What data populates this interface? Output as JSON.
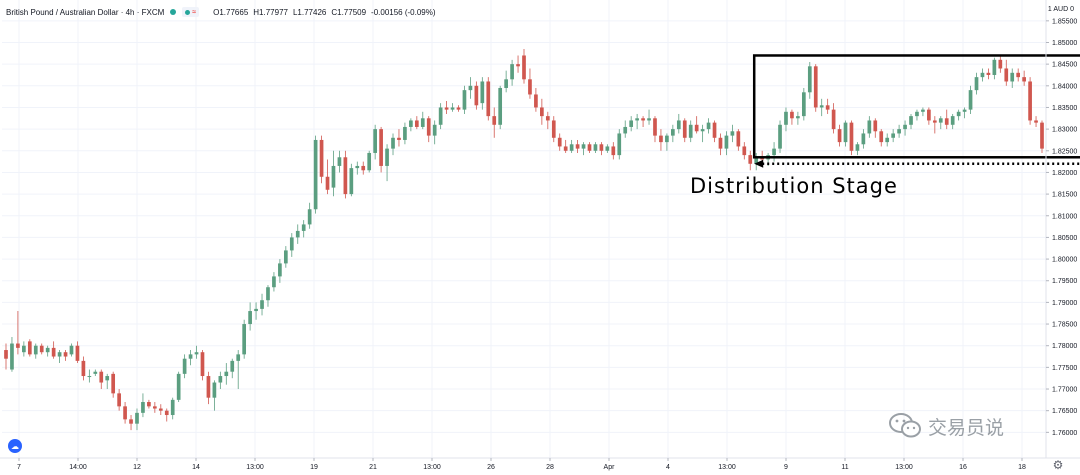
{
  "header": {
    "title": "British Pound / Australian Dollar · 4h · FXCM",
    "open": "O1.77665",
    "high": "H1.77977",
    "low": "L1.77426",
    "close": "C1.77509",
    "change": "-0.00156 (-0.09%)"
  },
  "currency_label": "1 AUD 0",
  "annotation": "Distribution Stage",
  "watermark": "交易员说",
  "icons": {
    "logo": "tradingview-cloud-icon",
    "settings": "gear-icon",
    "watermark": "wechat-icon"
  },
  "colors": {
    "up": "#5b9e80",
    "down": "#d0574f",
    "box": "#000000",
    "grid": "#f0f3fa"
  },
  "chart_data": {
    "type": "candlestick",
    "title": "British Pound / Australian Dollar · 4h · FXCM",
    "ylim": [
      1.755,
      1.8575
    ],
    "y_ticks": [
      "1.85500",
      "1.85000",
      "1.84500",
      "1.84000",
      "1.83500",
      "1.83000",
      "1.82500",
      "1.82000",
      "1.81500",
      "1.81000",
      "1.80500",
      "1.80000",
      "1.79500",
      "1.79000",
      "1.78500",
      "1.78000",
      "1.77500",
      "1.77000",
      "1.76500",
      "1.76000"
    ],
    "x_ticks": [
      "7",
      "14:00",
      "12",
      "14",
      "13:00",
      "19",
      "21",
      "13:00",
      "26",
      "28",
      "Apr",
      "4",
      "13:00",
      "9",
      "11",
      "13:00",
      "16",
      "18"
    ],
    "grid": true,
    "candles": [
      {
        "o": 1.779,
        "h": 1.7805,
        "l": 1.7745,
        "c": 1.777
      },
      {
        "o": 1.7745,
        "h": 1.782,
        "l": 1.774,
        "c": 1.7805
      },
      {
        "o": 1.7805,
        "h": 1.788,
        "l": 1.778,
        "c": 1.7795
      },
      {
        "o": 1.7785,
        "h": 1.781,
        "l": 1.7775,
        "c": 1.78
      },
      {
        "o": 1.781,
        "h": 1.7815,
        "l": 1.7775,
        "c": 1.778
      },
      {
        "o": 1.778,
        "h": 1.7805,
        "l": 1.777,
        "c": 1.78
      },
      {
        "o": 1.78,
        "h": 1.7805,
        "l": 1.778,
        "c": 1.7785
      },
      {
        "o": 1.7785,
        "h": 1.78,
        "l": 1.7775,
        "c": 1.7795
      },
      {
        "o": 1.7795,
        "h": 1.781,
        "l": 1.777,
        "c": 1.7775
      },
      {
        "o": 1.7775,
        "h": 1.779,
        "l": 1.776,
        "c": 1.7785
      },
      {
        "o": 1.7785,
        "h": 1.779,
        "l": 1.7765,
        "c": 1.7775
      },
      {
        "o": 1.778,
        "h": 1.7805,
        "l": 1.7775,
        "c": 1.78
      },
      {
        "o": 1.78,
        "h": 1.781,
        "l": 1.776,
        "c": 1.7765
      },
      {
        "o": 1.7765,
        "h": 1.7775,
        "l": 1.772,
        "c": 1.773
      },
      {
        "o": 1.773,
        "h": 1.7745,
        "l": 1.7715,
        "c": 1.773
      },
      {
        "o": 1.7735,
        "h": 1.7745,
        "l": 1.773,
        "c": 1.774
      },
      {
        "o": 1.774,
        "h": 1.7745,
        "l": 1.77,
        "c": 1.7715
      },
      {
        "o": 1.772,
        "h": 1.7735,
        "l": 1.77,
        "c": 1.773
      },
      {
        "o": 1.7735,
        "h": 1.774,
        "l": 1.768,
        "c": 1.769
      },
      {
        "o": 1.769,
        "h": 1.77,
        "l": 1.765,
        "c": 1.766
      },
      {
        "o": 1.766,
        "h": 1.767,
        "l": 1.762,
        "c": 1.763
      },
      {
        "o": 1.763,
        "h": 1.764,
        "l": 1.7605,
        "c": 1.762
      },
      {
        "o": 1.762,
        "h": 1.7655,
        "l": 1.7605,
        "c": 1.7645
      },
      {
        "o": 1.7645,
        "h": 1.769,
        "l": 1.7635,
        "c": 1.767
      },
      {
        "o": 1.767,
        "h": 1.7675,
        "l": 1.7655,
        "c": 1.766
      },
      {
        "o": 1.766,
        "h": 1.767,
        "l": 1.7645,
        "c": 1.7655
      },
      {
        "o": 1.7655,
        "h": 1.7665,
        "l": 1.764,
        "c": 1.765
      },
      {
        "o": 1.765,
        "h": 1.7655,
        "l": 1.7625,
        "c": 1.764
      },
      {
        "o": 1.764,
        "h": 1.768,
        "l": 1.763,
        "c": 1.7675
      },
      {
        "o": 1.7675,
        "h": 1.774,
        "l": 1.767,
        "c": 1.7735
      },
      {
        "o": 1.7735,
        "h": 1.778,
        "l": 1.7725,
        "c": 1.777
      },
      {
        "o": 1.777,
        "h": 1.779,
        "l": 1.7755,
        "c": 1.778
      },
      {
        "o": 1.778,
        "h": 1.78,
        "l": 1.777,
        "c": 1.7785
      },
      {
        "o": 1.7785,
        "h": 1.779,
        "l": 1.772,
        "c": 1.773
      },
      {
        "o": 1.773,
        "h": 1.774,
        "l": 1.7665,
        "c": 1.768
      },
      {
        "o": 1.768,
        "h": 1.772,
        "l": 1.765,
        "c": 1.7715
      },
      {
        "o": 1.7715,
        "h": 1.774,
        "l": 1.77,
        "c": 1.773
      },
      {
        "o": 1.773,
        "h": 1.776,
        "l": 1.771,
        "c": 1.774
      },
      {
        "o": 1.774,
        "h": 1.777,
        "l": 1.7725,
        "c": 1.7765
      },
      {
        "o": 1.7765,
        "h": 1.779,
        "l": 1.77,
        "c": 1.778
      },
      {
        "o": 1.778,
        "h": 1.786,
        "l": 1.777,
        "c": 1.785
      },
      {
        "o": 1.785,
        "h": 1.79,
        "l": 1.7835,
        "c": 1.788
      },
      {
        "o": 1.788,
        "h": 1.79,
        "l": 1.786,
        "c": 1.7885
      },
      {
        "o": 1.7885,
        "h": 1.792,
        "l": 1.787,
        "c": 1.7905
      },
      {
        "o": 1.7905,
        "h": 1.794,
        "l": 1.789,
        "c": 1.7935
      },
      {
        "o": 1.7935,
        "h": 1.797,
        "l": 1.7925,
        "c": 1.796
      },
      {
        "o": 1.796,
        "h": 1.8,
        "l": 1.7945,
        "c": 1.799
      },
      {
        "o": 1.799,
        "h": 1.803,
        "l": 1.798,
        "c": 1.802
      },
      {
        "o": 1.802,
        "h": 1.806,
        "l": 1.8005,
        "c": 1.805
      },
      {
        "o": 1.805,
        "h": 1.808,
        "l": 1.8035,
        "c": 1.8065
      },
      {
        "o": 1.8065,
        "h": 1.809,
        "l": 1.805,
        "c": 1.808
      },
      {
        "o": 1.808,
        "h": 1.813,
        "l": 1.807,
        "c": 1.8115
      },
      {
        "o": 1.8115,
        "h": 1.8285,
        "l": 1.8105,
        "c": 1.8275
      },
      {
        "o": 1.8275,
        "h": 1.8285,
        "l": 1.8175,
        "c": 1.819
      },
      {
        "o": 1.819,
        "h": 1.823,
        "l": 1.815,
        "c": 1.816
      },
      {
        "o": 1.8165,
        "h": 1.825,
        "l": 1.8145,
        "c": 1.8215
      },
      {
        "o": 1.8215,
        "h": 1.825,
        "l": 1.82,
        "c": 1.8235
      },
      {
        "o": 1.8235,
        "h": 1.825,
        "l": 1.814,
        "c": 1.815
      },
      {
        "o": 1.815,
        "h": 1.822,
        "l": 1.8145,
        "c": 1.821
      },
      {
        "o": 1.821,
        "h": 1.8225,
        "l": 1.8195,
        "c": 1.8215
      },
      {
        "o": 1.8215,
        "h": 1.8225,
        "l": 1.8195,
        "c": 1.8205
      },
      {
        "o": 1.8205,
        "h": 1.825,
        "l": 1.82,
        "c": 1.8245
      },
      {
        "o": 1.8245,
        "h": 1.831,
        "l": 1.823,
        "c": 1.83
      },
      {
        "o": 1.83,
        "h": 1.8305,
        "l": 1.82,
        "c": 1.8215
      },
      {
        "o": 1.8215,
        "h": 1.8265,
        "l": 1.818,
        "c": 1.8255
      },
      {
        "o": 1.8255,
        "h": 1.829,
        "l": 1.824,
        "c": 1.828
      },
      {
        "o": 1.828,
        "h": 1.83,
        "l": 1.826,
        "c": 1.8275
      },
      {
        "o": 1.8275,
        "h": 1.8315,
        "l": 1.8265,
        "c": 1.8305
      },
      {
        "o": 1.8305,
        "h": 1.8325,
        "l": 1.8295,
        "c": 1.832
      },
      {
        "o": 1.832,
        "h": 1.833,
        "l": 1.83,
        "c": 1.8305
      },
      {
        "o": 1.8305,
        "h": 1.834,
        "l": 1.83,
        "c": 1.8325
      },
      {
        "o": 1.8325,
        "h": 1.833,
        "l": 1.827,
        "c": 1.8285
      },
      {
        "o": 1.8285,
        "h": 1.832,
        "l": 1.8265,
        "c": 1.831
      },
      {
        "o": 1.831,
        "h": 1.836,
        "l": 1.83,
        "c": 1.835
      },
      {
        "o": 1.835,
        "h": 1.8365,
        "l": 1.8335,
        "c": 1.8345
      },
      {
        "o": 1.8345,
        "h": 1.836,
        "l": 1.834,
        "c": 1.835
      },
      {
        "o": 1.835,
        "h": 1.8355,
        "l": 1.834,
        "c": 1.8345
      },
      {
        "o": 1.8345,
        "h": 1.84,
        "l": 1.8335,
        "c": 1.839
      },
      {
        "o": 1.839,
        "h": 1.842,
        "l": 1.837,
        "c": 1.84
      },
      {
        "o": 1.84,
        "h": 1.841,
        "l": 1.8345,
        "c": 1.8355
      },
      {
        "o": 1.836,
        "h": 1.842,
        "l": 1.8345,
        "c": 1.841
      },
      {
        "o": 1.841,
        "h": 1.842,
        "l": 1.832,
        "c": 1.833
      },
      {
        "o": 1.833,
        "h": 1.835,
        "l": 1.828,
        "c": 1.831
      },
      {
        "o": 1.831,
        "h": 1.84,
        "l": 1.83,
        "c": 1.8395
      },
      {
        "o": 1.8395,
        "h": 1.8435,
        "l": 1.8385,
        "c": 1.8415
      },
      {
        "o": 1.8415,
        "h": 1.846,
        "l": 1.84,
        "c": 1.845
      },
      {
        "o": 1.845,
        "h": 1.847,
        "l": 1.843,
        "c": 1.8445
      },
      {
        "o": 1.847,
        "h": 1.8485,
        "l": 1.8405,
        "c": 1.8415
      },
      {
        "o": 1.8415,
        "h": 1.844,
        "l": 1.837,
        "c": 1.838
      },
      {
        "o": 1.838,
        "h": 1.8395,
        "l": 1.834,
        "c": 1.835
      },
      {
        "o": 1.835,
        "h": 1.837,
        "l": 1.831,
        "c": 1.833
      },
      {
        "o": 1.833,
        "h": 1.834,
        "l": 1.83,
        "c": 1.832
      },
      {
        "o": 1.832,
        "h": 1.833,
        "l": 1.827,
        "c": 1.828
      },
      {
        "o": 1.828,
        "h": 1.829,
        "l": 1.825,
        "c": 1.826
      },
      {
        "o": 1.826,
        "h": 1.8275,
        "l": 1.8245,
        "c": 1.825
      },
      {
        "o": 1.825,
        "h": 1.8275,
        "l": 1.8245,
        "c": 1.8265
      },
      {
        "o": 1.8265,
        "h": 1.8275,
        "l": 1.8245,
        "c": 1.8255
      },
      {
        "o": 1.8255,
        "h": 1.827,
        "l": 1.824,
        "c": 1.8265
      },
      {
        "o": 1.8265,
        "h": 1.827,
        "l": 1.8245,
        "c": 1.825
      },
      {
        "o": 1.825,
        "h": 1.827,
        "l": 1.8245,
        "c": 1.8265
      },
      {
        "o": 1.8265,
        "h": 1.827,
        "l": 1.824,
        "c": 1.825
      },
      {
        "o": 1.825,
        "h": 1.8265,
        "l": 1.8245,
        "c": 1.826
      },
      {
        "o": 1.826,
        "h": 1.827,
        "l": 1.823,
        "c": 1.824
      },
      {
        "o": 1.824,
        "h": 1.83,
        "l": 1.823,
        "c": 1.829
      },
      {
        "o": 1.829,
        "h": 1.832,
        "l": 1.828,
        "c": 1.8305
      },
      {
        "o": 1.8305,
        "h": 1.833,
        "l": 1.8295,
        "c": 1.832
      },
      {
        "o": 1.832,
        "h": 1.8335,
        "l": 1.83,
        "c": 1.8325
      },
      {
        "o": 1.8325,
        "h": 1.833,
        "l": 1.8305,
        "c": 1.832
      },
      {
        "o": 1.832,
        "h": 1.8345,
        "l": 1.831,
        "c": 1.8325
      },
      {
        "o": 1.8325,
        "h": 1.833,
        "l": 1.827,
        "c": 1.8285
      },
      {
        "o": 1.8285,
        "h": 1.83,
        "l": 1.825,
        "c": 1.827
      },
      {
        "o": 1.827,
        "h": 1.829,
        "l": 1.825,
        "c": 1.8285
      },
      {
        "o": 1.8285,
        "h": 1.831,
        "l": 1.827,
        "c": 1.83
      },
      {
        "o": 1.83,
        "h": 1.8335,
        "l": 1.829,
        "c": 1.832
      },
      {
        "o": 1.832,
        "h": 1.8325,
        "l": 1.827,
        "c": 1.828
      },
      {
        "o": 1.828,
        "h": 1.832,
        "l": 1.827,
        "c": 1.831
      },
      {
        "o": 1.831,
        "h": 1.833,
        "l": 1.829,
        "c": 1.8295
      },
      {
        "o": 1.8295,
        "h": 1.831,
        "l": 1.827,
        "c": 1.83
      },
      {
        "o": 1.83,
        "h": 1.8325,
        "l": 1.829,
        "c": 1.8315
      },
      {
        "o": 1.8315,
        "h": 1.832,
        "l": 1.827,
        "c": 1.828
      },
      {
        "o": 1.828,
        "h": 1.829,
        "l": 1.824,
        "c": 1.8255
      },
      {
        "o": 1.8255,
        "h": 1.8295,
        "l": 1.824,
        "c": 1.8285
      },
      {
        "o": 1.8285,
        "h": 1.831,
        "l": 1.827,
        "c": 1.8295
      },
      {
        "o": 1.8295,
        "h": 1.83,
        "l": 1.825,
        "c": 1.826
      },
      {
        "o": 1.826,
        "h": 1.827,
        "l": 1.823,
        "c": 1.824
      },
      {
        "o": 1.824,
        "h": 1.825,
        "l": 1.8205,
        "c": 1.822
      },
      {
        "o": 1.822,
        "h": 1.8245,
        "l": 1.8205,
        "c": 1.8235
      },
      {
        "o": 1.8235,
        "h": 1.825,
        "l": 1.8215,
        "c": 1.823
      },
      {
        "o": 1.823,
        "h": 1.8245,
        "l": 1.8215,
        "c": 1.824
      },
      {
        "o": 1.824,
        "h": 1.827,
        "l": 1.8225,
        "c": 1.8255
      },
      {
        "o": 1.8255,
        "h": 1.832,
        "l": 1.8245,
        "c": 1.831
      },
      {
        "o": 1.831,
        "h": 1.835,
        "l": 1.8295,
        "c": 1.834
      },
      {
        "o": 1.834,
        "h": 1.8345,
        "l": 1.831,
        "c": 1.8325
      },
      {
        "o": 1.8325,
        "h": 1.834,
        "l": 1.831,
        "c": 1.833
      },
      {
        "o": 1.833,
        "h": 1.8395,
        "l": 1.832,
        "c": 1.8385
      },
      {
        "o": 1.8385,
        "h": 1.8455,
        "l": 1.837,
        "c": 1.8445
      },
      {
        "o": 1.8445,
        "h": 1.845,
        "l": 1.834,
        "c": 1.835
      },
      {
        "o": 1.835,
        "h": 1.837,
        "l": 1.833,
        "c": 1.8355
      },
      {
        "o": 1.8355,
        "h": 1.837,
        "l": 1.8335,
        "c": 1.8345
      },
      {
        "o": 1.8345,
        "h": 1.836,
        "l": 1.829,
        "c": 1.83
      },
      {
        "o": 1.83,
        "h": 1.831,
        "l": 1.826,
        "c": 1.827
      },
      {
        "o": 1.827,
        "h": 1.832,
        "l": 1.826,
        "c": 1.8315
      },
      {
        "o": 1.8315,
        "h": 1.832,
        "l": 1.824,
        "c": 1.825
      },
      {
        "o": 1.825,
        "h": 1.827,
        "l": 1.824,
        "c": 1.8265
      },
      {
        "o": 1.8265,
        "h": 1.83,
        "l": 1.8255,
        "c": 1.829
      },
      {
        "o": 1.829,
        "h": 1.833,
        "l": 1.828,
        "c": 1.832
      },
      {
        "o": 1.832,
        "h": 1.8325,
        "l": 1.828,
        "c": 1.8295
      },
      {
        "o": 1.8295,
        "h": 1.83,
        "l": 1.826,
        "c": 1.827
      },
      {
        "o": 1.827,
        "h": 1.829,
        "l": 1.826,
        "c": 1.828
      },
      {
        "o": 1.828,
        "h": 1.83,
        "l": 1.827,
        "c": 1.829
      },
      {
        "o": 1.829,
        "h": 1.831,
        "l": 1.828,
        "c": 1.83
      },
      {
        "o": 1.83,
        "h": 1.832,
        "l": 1.8285,
        "c": 1.831
      },
      {
        "o": 1.831,
        "h": 1.8335,
        "l": 1.83,
        "c": 1.833
      },
      {
        "o": 1.833,
        "h": 1.8345,
        "l": 1.832,
        "c": 1.834
      },
      {
        "o": 1.834,
        "h": 1.835,
        "l": 1.833,
        "c": 1.8345
      },
      {
        "o": 1.8345,
        "h": 1.835,
        "l": 1.831,
        "c": 1.832
      },
      {
        "o": 1.832,
        "h": 1.833,
        "l": 1.829,
        "c": 1.8315
      },
      {
        "o": 1.8315,
        "h": 1.833,
        "l": 1.83,
        "c": 1.8325
      },
      {
        "o": 1.8325,
        "h": 1.8345,
        "l": 1.83,
        "c": 1.831
      },
      {
        "o": 1.831,
        "h": 1.8335,
        "l": 1.83,
        "c": 1.833
      },
      {
        "o": 1.833,
        "h": 1.8345,
        "l": 1.832,
        "c": 1.834
      },
      {
        "o": 1.834,
        "h": 1.835,
        "l": 1.8325,
        "c": 1.8345
      },
      {
        "o": 1.8345,
        "h": 1.84,
        "l": 1.8335,
        "c": 1.839
      },
      {
        "o": 1.839,
        "h": 1.843,
        "l": 1.838,
        "c": 1.842
      },
      {
        "o": 1.842,
        "h": 1.844,
        "l": 1.841,
        "c": 1.843
      },
      {
        "o": 1.843,
        "h": 1.844,
        "l": 1.8415,
        "c": 1.8425
      },
      {
        "o": 1.8425,
        "h": 1.8465,
        "l": 1.8415,
        "c": 1.846
      },
      {
        "o": 1.846,
        "h": 1.847,
        "l": 1.843,
        "c": 1.844
      },
      {
        "o": 1.844,
        "h": 1.846,
        "l": 1.84,
        "c": 1.841
      },
      {
        "o": 1.841,
        "h": 1.844,
        "l": 1.8395,
        "c": 1.843
      },
      {
        "o": 1.843,
        "h": 1.844,
        "l": 1.841,
        "c": 1.842
      },
      {
        "o": 1.842,
        "h": 1.8435,
        "l": 1.84,
        "c": 1.841
      },
      {
        "o": 1.841,
        "h": 1.842,
        "l": 1.831,
        "c": 1.832
      },
      {
        "o": 1.832,
        "h": 1.833,
        "l": 1.8305,
        "c": 1.8315
      },
      {
        "o": 1.8315,
        "h": 1.832,
        "l": 1.8245,
        "c": 1.8255
      }
    ],
    "distribution_box": {
      "start_index": 126,
      "end_index": 187,
      "low": 1.8235,
      "high": 1.847
    },
    "arrow_level": 1.822,
    "annotation": "Distribution Stage"
  }
}
